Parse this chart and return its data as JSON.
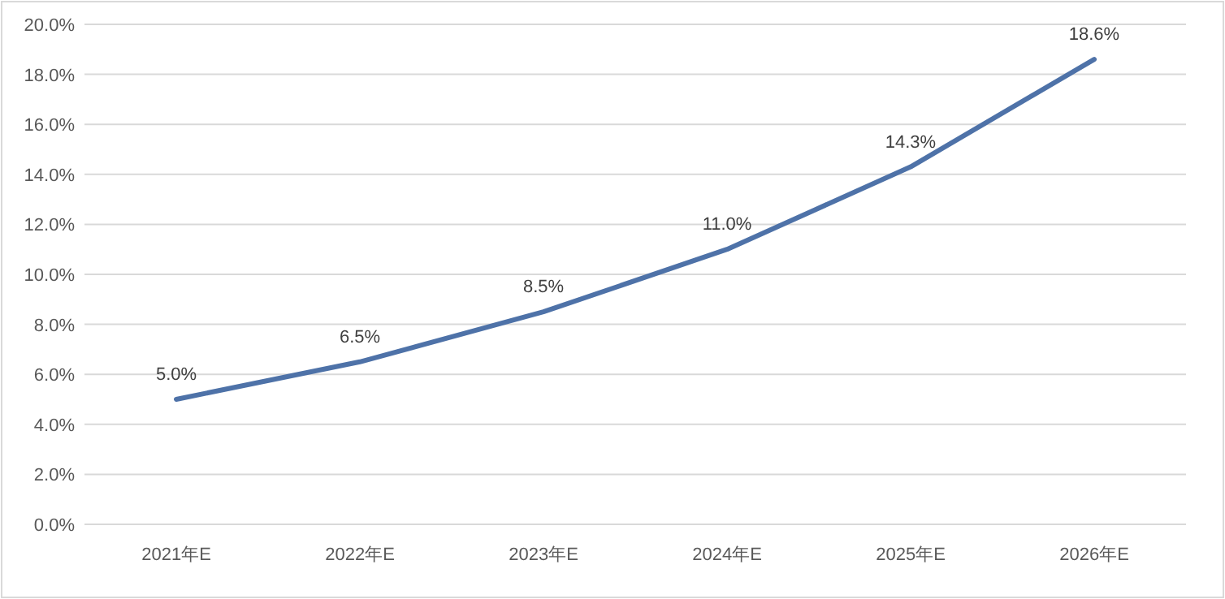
{
  "chart_data": {
    "type": "line",
    "categories": [
      "2021年E",
      "2022年E",
      "2023年E",
      "2024年E",
      "2025年E",
      "2026年E"
    ],
    "values": [
      5.0,
      6.5,
      8.5,
      11.0,
      14.3,
      18.6
    ],
    "value_labels": [
      "5.0%",
      "6.5%",
      "8.5%",
      "11.0%",
      "14.3%",
      "18.6%"
    ],
    "color": "#4e72a8",
    "ylim": [
      0,
      20
    ],
    "yticks": [
      {
        "value": 0,
        "label": "0.0%"
      },
      {
        "value": 2,
        "label": "2.0%"
      },
      {
        "value": 4,
        "label": "4.0%"
      },
      {
        "value": 6,
        "label": "6.0%"
      },
      {
        "value": 8,
        "label": "8.0%"
      },
      {
        "value": 10,
        "label": "10.0%"
      },
      {
        "value": 12,
        "label": "12.0%"
      },
      {
        "value": 14,
        "label": "14.0%"
      },
      {
        "value": 16,
        "label": "16.0%"
      },
      {
        "value": 18,
        "label": "18.0%"
      },
      {
        "value": 20,
        "label": "20.0%"
      }
    ],
    "grid": "y"
  }
}
